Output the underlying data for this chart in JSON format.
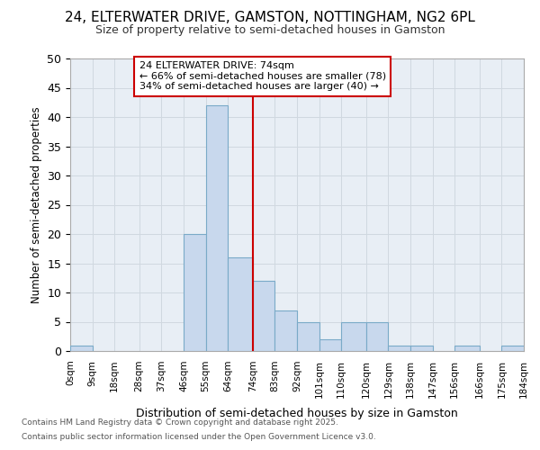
{
  "title_line1": "24, ELTERWATER DRIVE, GAMSTON, NOTTINGHAM, NG2 6PL",
  "title_line2": "Size of property relative to semi-detached houses in Gamston",
  "xlabel": "Distribution of semi-detached houses by size in Gamston",
  "ylabel": "Number of semi-detached properties",
  "footer_line1": "Contains HM Land Registry data © Crown copyright and database right 2025.",
  "footer_line2": "Contains public sector information licensed under the Open Government Licence v3.0.",
  "property_size": 74,
  "annotation_title": "24 ELTERWATER DRIVE: 74sqm",
  "annotation_line1": "← 66% of semi-detached houses are smaller (78)",
  "annotation_line2": "34% of semi-detached houses are larger (40) →",
  "bin_edges": [
    0,
    9,
    18,
    28,
    37,
    46,
    55,
    64,
    74,
    83,
    92,
    101,
    110,
    120,
    129,
    138,
    147,
    156,
    166,
    175,
    184
  ],
  "bin_labels": [
    "0sqm",
    "9sqm",
    "18sqm",
    "28sqm",
    "37sqm",
    "46sqm",
    "55sqm",
    "64sqm",
    "74sqm",
    "83sqm",
    "92sqm",
    "101sqm",
    "110sqm",
    "120sqm",
    "129sqm",
    "138sqm",
    "147sqm",
    "156sqm",
    "166sqm",
    "175sqm",
    "184sqm"
  ],
  "counts": [
    1,
    0,
    0,
    0,
    0,
    20,
    42,
    16,
    12,
    7,
    5,
    2,
    5,
    5,
    1,
    1,
    0,
    1,
    0,
    1
  ],
  "bar_color": "#c8d8ed",
  "bar_edge_color": "#7aaac8",
  "vline_x": 74,
  "vline_color": "#cc0000",
  "background_color": "#e8eef5",
  "grid_color": "#d0d8e0",
  "fig_bg_color": "#ffffff",
  "ylim": [
    0,
    50
  ],
  "yticks": [
    0,
    5,
    10,
    15,
    20,
    25,
    30,
    35,
    40,
    45,
    50
  ]
}
